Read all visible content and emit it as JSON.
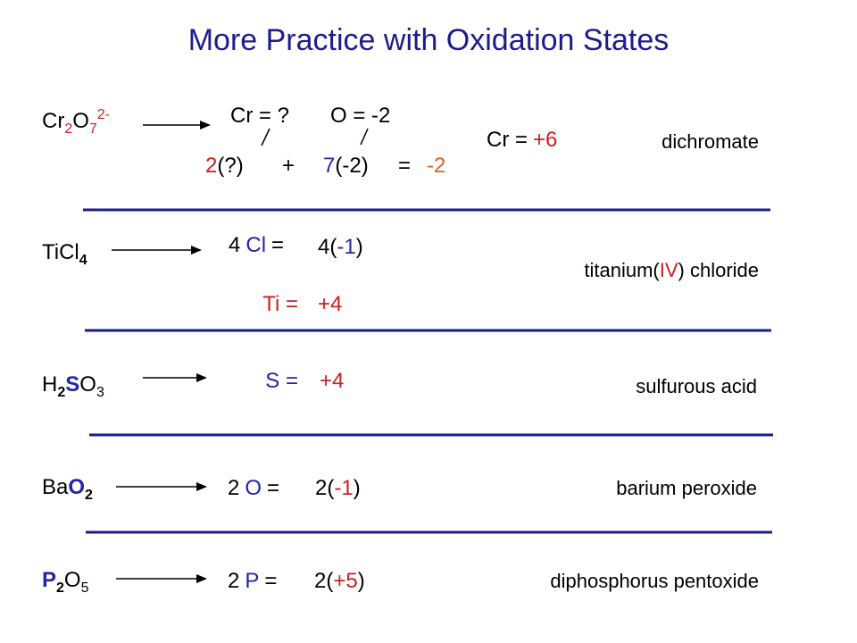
{
  "title": "More Practice with Oxidation States",
  "rows": [
    {
      "formula": [
        "Cr",
        "2",
        "O",
        "7",
        "2-"
      ],
      "eq1": [
        "Cr = ?",
        "O = -2"
      ],
      "eq2": [
        "2",
        "(?)",
        "+",
        "7",
        "(-2)",
        "=",
        "-2"
      ],
      "result": [
        "Cr =",
        "+6"
      ],
      "name": [
        "dichromate"
      ]
    },
    {
      "formula": [
        "TiCl",
        "4"
      ],
      "eq1": [
        "4",
        "Cl",
        "=",
        "4(",
        "-1",
        ")"
      ],
      "eq2": [
        "Ti =",
        "+4"
      ],
      "name": [
        "titanium(",
        "IV",
        ") chloride"
      ]
    },
    {
      "formula": [
        "H",
        "2",
        "S",
        "O",
        "3"
      ],
      "eq1": [
        "S =",
        "+4"
      ],
      "name": [
        "sulfurous acid"
      ]
    },
    {
      "formula": [
        "Ba",
        "O",
        "2"
      ],
      "eq1": [
        "2",
        "O",
        "=",
        "2(",
        "-1",
        ")"
      ],
      "name": [
        "barium peroxide"
      ]
    },
    {
      "formula": [
        "P",
        "2",
        "O",
        "5"
      ],
      "eq1": [
        "2",
        "P",
        "=",
        "2(",
        "+5",
        ")"
      ],
      "name": [
        "diphosphorus pentoxide"
      ]
    }
  ]
}
